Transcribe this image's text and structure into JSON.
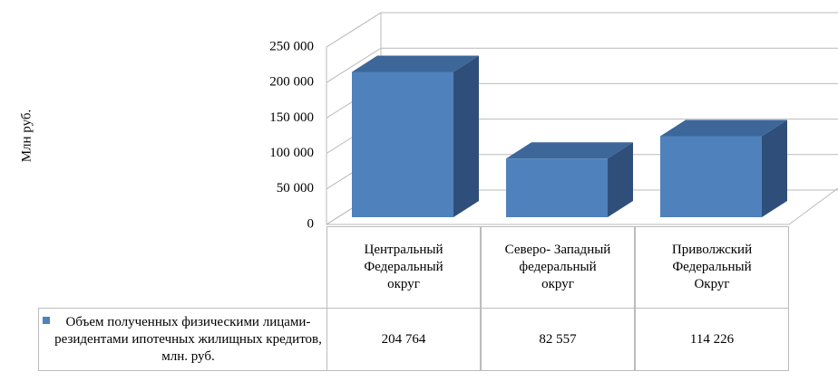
{
  "chart_data": {
    "type": "bar3d",
    "y_label": "Млн руб.",
    "categories": [
      "Центральный Федеральный округ",
      "Северо- Западный федеральный округ",
      "Приволжский Федеральный Округ"
    ],
    "series": [
      {
        "name": "Объем полученных физическими лицами-резидентами ипотечных жилищных кредитов, млн. руб.",
        "color": "#4f81bd",
        "values": [
          204764,
          82557,
          114226
        ],
        "value_labels": [
          "204 764",
          "82 557",
          "114 226"
        ]
      }
    ],
    "ylim": [
      0,
      250000
    ],
    "yticks": [
      0,
      {
        "value": 50000,
        "label": "50 000"
      },
      {
        "value": 100000,
        "label": "100 000"
      },
      {
        "value": 150000,
        "label": "150 000"
      },
      {
        "value": 200000,
        "label": "200 000"
      },
      {
        "value": 250000,
        "label": "250 000"
      }
    ],
    "grid": true
  }
}
